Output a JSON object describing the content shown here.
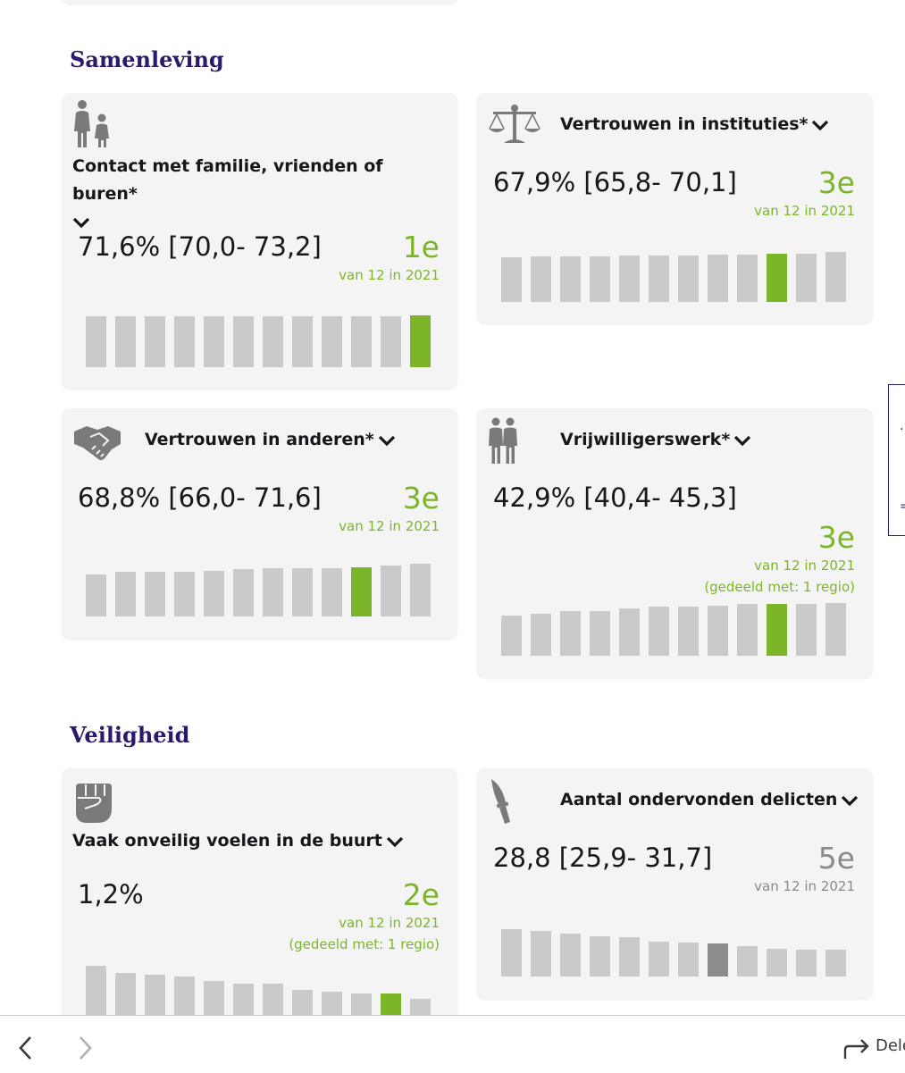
{
  "colors": {
    "highlight": "#7db52a",
    "bar": "#cacaca",
    "bar_dark": "#8c8c8c",
    "section": "#2b1a6b",
    "text": "#15171a"
  },
  "sections": [
    {
      "title": "Samenleving",
      "cards": [
        {
          "title": "Contact met familie, vrienden of buren*",
          "icon": "family-icon",
          "value": "71,6% [70,0- 73,2]",
          "rank": "1e",
          "rank_sub": "van 12 in 2021",
          "rank_note": "",
          "highlight": "green",
          "highlight_index": 11,
          "bar_levels": [
            0.98,
            0.98,
            0.98,
            0.98,
            0.98,
            0.98,
            0.98,
            0.98,
            0.98,
            0.98,
            0.98,
            1.0
          ]
        },
        {
          "title": "Vertrouwen in instituties*",
          "icon": "balance-scale-icon",
          "value": "67,9% [65,8- 70,1]",
          "rank": "3e",
          "rank_sub": "van 12 in 2021",
          "rank_note": "",
          "highlight": "green",
          "highlight_index": 9,
          "bar_levels": [
            0.87,
            0.89,
            0.9,
            0.9,
            0.91,
            0.91,
            0.91,
            0.93,
            0.93,
            0.95,
            0.95,
            0.98
          ]
        },
        {
          "title": "Vertrouwen in anderen*",
          "icon": "handshake-icon",
          "value": "68,8% [66,0- 71,6]",
          "rank": "3e",
          "rank_sub": "van 12 in 2021",
          "rank_note": "",
          "highlight": "green",
          "highlight_index": 9,
          "bar_levels": [
            0.8,
            0.84,
            0.84,
            0.84,
            0.87,
            0.9,
            0.91,
            0.91,
            0.91,
            0.93,
            0.96,
            1.0
          ]
        },
        {
          "title": "Vrijwilligerswerk*",
          "icon": "volunteers-icon",
          "value": "42,9% [40,4- 45,3]",
          "rank": "3e",
          "rank_sub": "van 12 in 2021",
          "rank_note": "(gedeeld met: 1 regio)",
          "highlight": "green",
          "highlight_index": 9,
          "bar_levels": [
            0.76,
            0.79,
            0.84,
            0.84,
            0.9,
            0.93,
            0.93,
            0.95,
            0.98,
            0.98,
            0.98,
            1.0
          ]
        }
      ]
    },
    {
      "title": "Veiligheid",
      "cards": [
        {
          "title": "Vaak onveilig voelen in de buurt",
          "icon": "fist-icon",
          "value": "1,2%",
          "rank": "2e",
          "rank_sub": "van 12 in 2021",
          "rank_note": "(gedeeld met: 1 regio)",
          "highlight": "green",
          "highlight_index": 10,
          "bar_levels": [
            1.0,
            0.85,
            0.81,
            0.78,
            0.69,
            0.64,
            0.64,
            0.51,
            0.47,
            0.44,
            0.44,
            0.33
          ]
        },
        {
          "title": "Aantal ondervonden delicten",
          "icon": "knife-icon",
          "value": "28,8 [25,9- 31,7]",
          "rank": "5e",
          "rank_sub": "van 12 in 2021",
          "rank_note": "",
          "highlight": "dark",
          "highlight_index": 7,
          "bar_levels": [
            1.0,
            0.96,
            0.9,
            0.85,
            0.83,
            0.73,
            0.71,
            0.69,
            0.65,
            0.58,
            0.56,
            0.56
          ]
        }
      ]
    }
  ],
  "footer": {
    "share_label": "Dele"
  }
}
